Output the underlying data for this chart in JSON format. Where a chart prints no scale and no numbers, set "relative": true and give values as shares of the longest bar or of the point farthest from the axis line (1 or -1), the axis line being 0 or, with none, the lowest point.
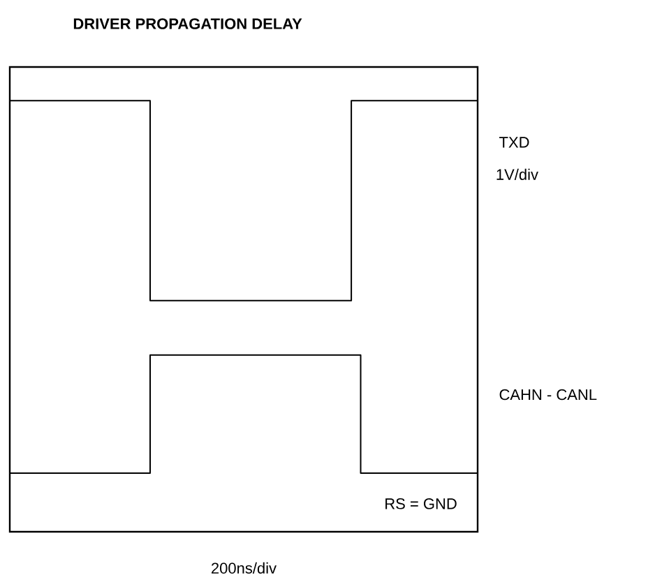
{
  "chart_data": {
    "type": "step",
    "title": "DRIVER PROPAGATION DELAY",
    "relative": true,
    "legend": false,
    "marker": "none",
    "line_style": "solid",
    "annotations": [
      "1V/div",
      "RS = GND",
      "200ns/div"
    ],
    "categories": [
      null,
      null,
      null,
      null,
      null,
      null,
      null,
      null,
      null,
      null,
      null,
      null,
      null,
      null,
      null,
      null,
      null,
      null,
      null,
      null,
      null,
      null,
      null,
      null,
      null,
      null,
      null,
      null,
      null,
      null,
      null,
      null,
      null,
      null,
      null,
      null,
      null,
      null,
      null,
      null,
      null,
      null,
      null,
      null,
      null,
      null,
      null,
      null,
      null,
      null,
      null,
      null,
      null,
      null,
      null,
      null,
      null,
      null,
      null,
      null,
      null,
      null,
      null,
      null,
      null,
      null,
      null,
      null,
      null,
      null,
      null,
      null,
      null,
      null,
      null,
      null,
      null,
      null,
      null,
      null,
      null,
      null,
      null,
      null,
      null,
      null,
      null,
      null,
      null,
      null,
      null,
      null,
      null,
      null,
      null,
      null,
      null,
      null,
      null,
      null,
      null
    ],
    "series": [
      {
        "name": "TXD",
        "color": "#000000",
        "values": [
          1,
          1,
          1,
          1,
          1,
          1,
          1,
          1,
          1,
          1,
          1,
          1,
          1,
          1,
          1,
          1,
          1,
          1,
          1,
          1,
          1,
          1,
          1,
          1,
          1,
          1,
          1,
          1,
          1,
          1,
          0.536,
          0.536,
          0.536,
          0.536,
          0.536,
          0.536,
          0.536,
          0.536,
          0.536,
          0.536,
          0.536,
          0.536,
          0.536,
          0.536,
          0.536,
          0.536,
          0.536,
          0.536,
          0.536,
          0.536,
          0.536,
          0.536,
          0.536,
          0.536,
          0.536,
          0.536,
          0.536,
          0.536,
          0.536,
          0.536,
          0.536,
          0.536,
          0.536,
          0.536,
          0.536,
          0.536,
          0.536,
          0.536,
          0.536,
          0.536,
          0.536,
          0.536,
          0.536,
          1,
          1,
          1,
          1,
          1,
          1,
          1,
          1,
          1,
          1,
          1,
          1,
          1,
          1,
          1,
          1,
          1,
          1,
          1,
          1,
          1,
          1,
          1,
          1,
          1,
          1,
          1,
          1
        ]
      },
      {
        "name": "CAHN - CANL",
        "color": "#000000",
        "values": [
          0.136,
          0.136,
          0.136,
          0.136,
          0.136,
          0.136,
          0.136,
          0.136,
          0.136,
          0.136,
          0.136,
          0.136,
          0.136,
          0.136,
          0.136,
          0.136,
          0.136,
          0.136,
          0.136,
          0.136,
          0.136,
          0.136,
          0.136,
          0.136,
          0.136,
          0.136,
          0.136,
          0.136,
          0.136,
          0.136,
          0.41,
          0.41,
          0.41,
          0.41,
          0.41,
          0.41,
          0.41,
          0.41,
          0.41,
          0.41,
          0.41,
          0.41,
          0.41,
          0.41,
          0.41,
          0.41,
          0.41,
          0.41,
          0.41,
          0.41,
          0.41,
          0.41,
          0.41,
          0.41,
          0.41,
          0.41,
          0.41,
          0.41,
          0.41,
          0.41,
          0.41,
          0.41,
          0.41,
          0.41,
          0.41,
          0.41,
          0.41,
          0.41,
          0.41,
          0.41,
          0.41,
          0.41,
          0.41,
          0.41,
          0.41,
          0.136,
          0.136,
          0.136,
          0.136,
          0.136,
          0.136,
          0.136,
          0.136,
          0.136,
          0.136,
          0.136,
          0.136,
          0.136,
          0.136,
          0.136,
          0.136,
          0.136,
          0.136,
          0.136,
          0.136,
          0.136,
          0.136,
          0.136,
          0.136,
          0.136,
          0.136
        ]
      }
    ]
  }
}
